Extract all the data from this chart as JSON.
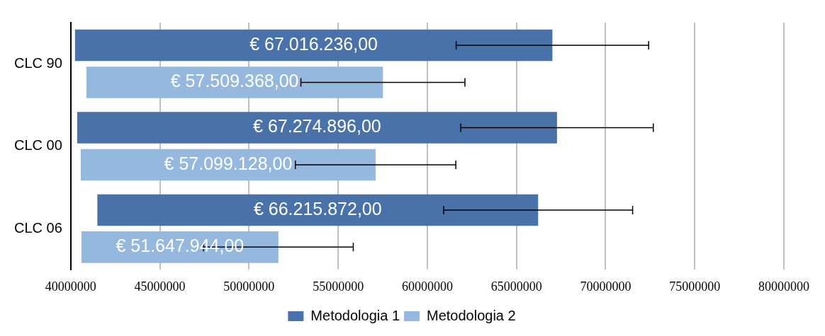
{
  "chart_data": {
    "type": "bar",
    "orientation": "horizontal",
    "categories": [
      "CLC 90",
      "CLC 00",
      "CLC 06"
    ],
    "series": [
      {
        "name": "Metodologia 1",
        "color": "#4a72aa",
        "base": [
          40240000,
          40360000,
          41490000
        ],
        "values": [
          26776236,
          26914896,
          24725872
        ],
        "errors": [
          5400000,
          5400000,
          5300000
        ],
        "value_labels": [
          "€ 67.016.236,00",
          "€ 67.274.896,00",
          "€ 66.215.872,00"
        ]
      },
      {
        "name": "Metodologia 2",
        "color": "#95b8de",
        "base": [
          40880000,
          40560000,
          40600000
        ],
        "values": [
          16629368,
          16539128,
          11047944
        ],
        "errors": [
          4600000,
          4500000,
          4200000
        ],
        "value_labels": [
          "€ 57.509.368,00",
          "€ 57.099.128,00",
          "€ 51.647.944,00"
        ]
      }
    ],
    "xlim": [
      40000000,
      80000000
    ],
    "xticks": [
      40000000,
      45000000,
      50000000,
      55000000,
      60000000,
      65000000,
      70000000,
      75000000,
      80000000
    ],
    "grid": "x",
    "legend": "bottom"
  }
}
